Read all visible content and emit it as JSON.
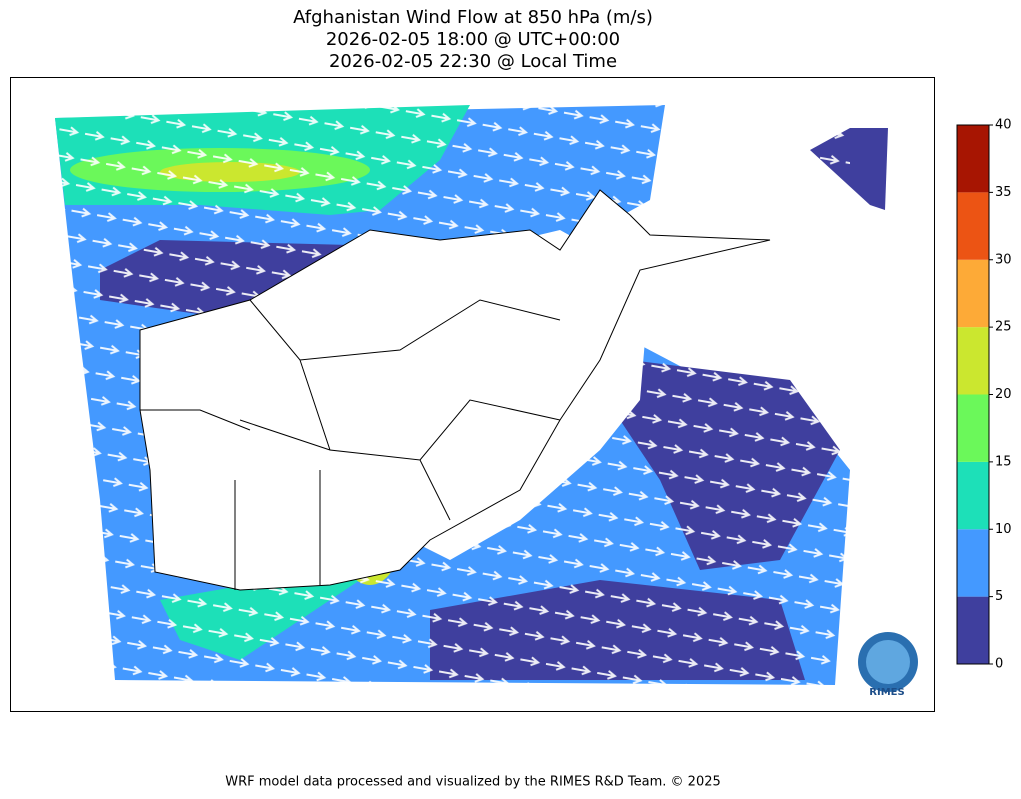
{
  "title": [
    "Afghanistan Wind Flow at 850 hPa (m/s)",
    "2026-02-05 18:00 @ UTC+00:00",
    "2026-02-05 22:30 @ Local Time"
  ],
  "colorbar": {
    "lim": [
      0,
      40
    ],
    "ticks": [
      0,
      5,
      10,
      15,
      20,
      25,
      30,
      35,
      40
    ],
    "colors": [
      "#3f3f9e",
      "#4499ff",
      "#1de0b8",
      "#6bf85a",
      "#cbe72f",
      "#fdaa37",
      "#ec5414",
      "#a71502"
    ]
  },
  "logo": "RIMES",
  "footer": "WRF model data processed and visualized by the RIMES R&D Team. © 2025"
}
